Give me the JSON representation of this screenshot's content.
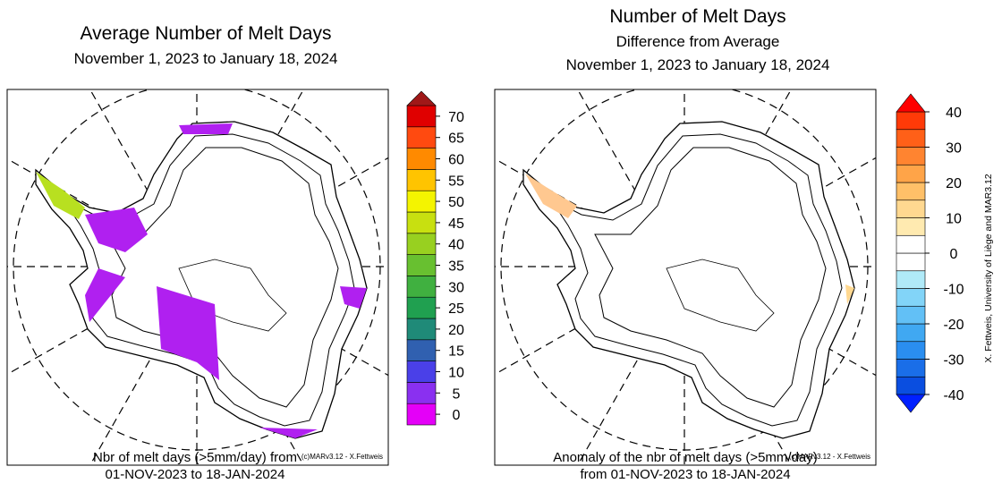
{
  "left": {
    "title": "Average Number of Melt Days",
    "subtitle": "November 1, 2023 to January 18, 2024",
    "credit": "(c)MARv3.12 - X.Fettweis",
    "caption": [
      "Nbr of melt days (>5mm/day) from",
      "01-NOV-2023 to 18-JAN-2024"
    ],
    "colorbar": {
      "ticks": [
        0,
        5,
        10,
        15,
        20,
        25,
        30,
        35,
        40,
        45,
        50,
        55,
        60,
        65,
        70
      ],
      "colors": [
        "#e400f8",
        "#8a30f0",
        "#4a40e8",
        "#3060b0",
        "#1f8a78",
        "#20a050",
        "#40b040",
        "#68c030",
        "#98d020",
        "#c8e010",
        "#f4f400",
        "#ffc400",
        "#ff8a00",
        "#ff4a10",
        "#e00000"
      ],
      "over_color": "#a01818"
    }
  },
  "right": {
    "title": "Number of Melt Days",
    "subtitle": "Difference from Average",
    "subtitle2": "November 1, 2023 to January 18, 2024",
    "credit": "(c)MARv3.12 - X.Fettweis",
    "caption": [
      "Anomaly of the nbr of melt days (>5mm/day)",
      "from 01-NOV-2023 to 18-JAN-2024"
    ],
    "colorbar": {
      "ticks": [
        -40,
        -30,
        -20,
        -10,
        0,
        10,
        20,
        30,
        40
      ],
      "colors": [
        "#0a4ee0",
        "#1a6ee8",
        "#2a8ef0",
        "#40a8f2",
        "#62c0f6",
        "#82d4f8",
        "#b0eaf8",
        "#ffffff",
        "#ffffff",
        "#ffeab0",
        "#ffd890",
        "#ffc068",
        "#ffa448",
        "#ff8430",
        "#ff6018",
        "#ff3a08"
      ],
      "under_color": "#0020ff",
      "over_color": "#ff0000"
    }
  },
  "side_credit": "X. Fettweis, University of Liège and MAR3.12"
}
